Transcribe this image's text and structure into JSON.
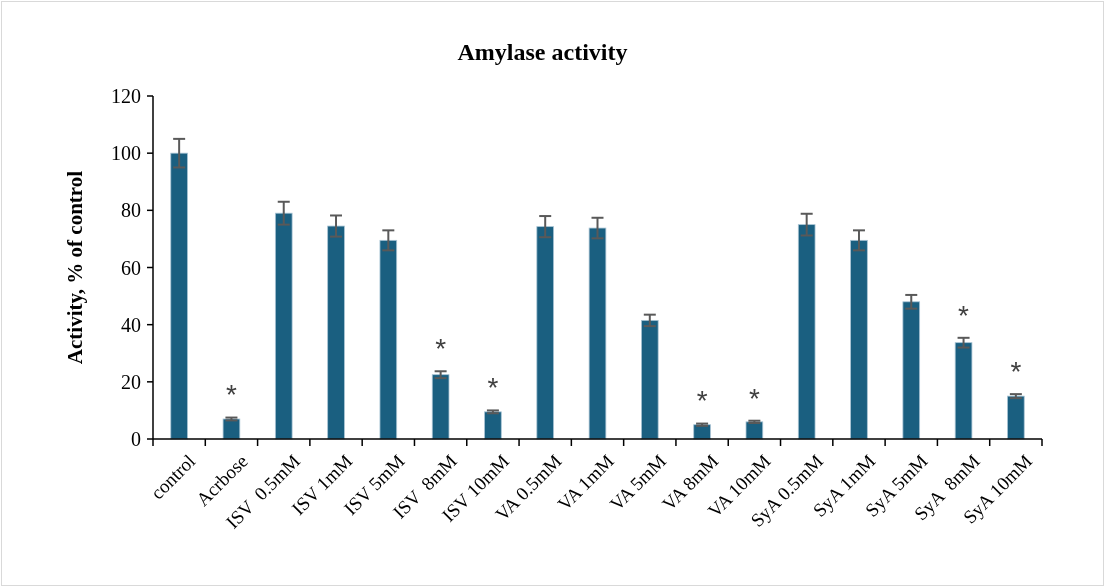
{
  "chart_data": {
    "type": "bar",
    "title": "Amylase activity",
    "ylabel": "Activity, % of control",
    "categories": [
      "control",
      "Acrbose",
      "ISV  0.5mM",
      "ISV 1mM",
      "ISV 5mM",
      "ISV  8mM",
      "ISV 10mM",
      "VA 0.5mM",
      "VA 1mM",
      "VA 5mM",
      "VA 8mM",
      "VA 10mM",
      "SyA 0.5mM",
      "SyA 1mM",
      "SyA 5mM",
      "SyA  8mM",
      "SyA 10mM"
    ],
    "values": [
      100,
      7,
      79,
      74.5,
      69.5,
      22.5,
      9.5,
      74.3,
      73.8,
      41.5,
      5,
      6,
      75,
      69.5,
      48,
      33.7,
      15
    ],
    "errors": [
      5,
      0.5,
      4,
      3.7,
      3.5,
      1.2,
      0.5,
      3.7,
      3.6,
      2,
      0.4,
      0.4,
      3.8,
      3.5,
      2.4,
      1.7,
      0.7
    ],
    "color": "#1a5f80",
    "ylim": [
      0,
      120
    ],
    "yticks": [
      0,
      20,
      40,
      60,
      80,
      100,
      120
    ],
    "grid": false,
    "value_labels": [
      null,
      "*",
      null,
      null,
      null,
      "*",
      "*",
      null,
      null,
      null,
      "*",
      "*",
      null,
      null,
      null,
      "*",
      "*"
    ]
  }
}
